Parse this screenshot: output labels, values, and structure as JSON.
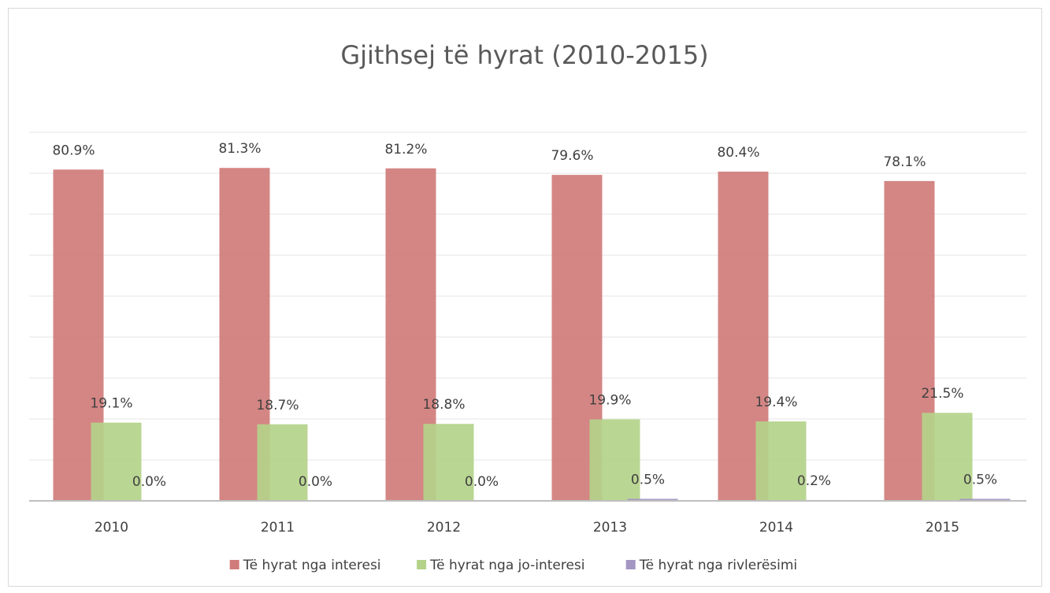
{
  "chart_data": {
    "type": "bar",
    "title": "Gjithsej të hyrat (2010-2015)",
    "categories": [
      "2010",
      "2011",
      "2012",
      "2013",
      "2014",
      "2015"
    ],
    "series": [
      {
        "name": "Të hyrat nga interesi",
        "color": "#d07c7a",
        "values": [
          80.9,
          81.3,
          81.2,
          79.6,
          80.4,
          78.1
        ],
        "value_labels": [
          "80.9%",
          "81.3%",
          "81.2%",
          "79.6%",
          "80.4%",
          "78.1%"
        ]
      },
      {
        "name": "Të hyrat nga jo-interesi",
        "color": "#b4d28a",
        "values": [
          19.1,
          18.7,
          18.8,
          19.9,
          19.4,
          21.5
        ],
        "value_labels": [
          "19.1%",
          "18.7%",
          "18.8%",
          "19.9%",
          "19.4%",
          "21.5%"
        ]
      },
      {
        "name": "Të hyrat nga rivlerësimi",
        "color": "#a396c2",
        "values": [
          0.0,
          0.0,
          0.0,
          0.5,
          0.2,
          0.5
        ],
        "value_labels": [
          "0.0%",
          "0.0%",
          "0.0%",
          "0.5%",
          "0.2%",
          "0.5%"
        ]
      }
    ],
    "ylim": [
      0,
      90
    ],
    "yticks": [
      0,
      10,
      20,
      30,
      40,
      50,
      60,
      70,
      80,
      90
    ],
    "grid": true,
    "legend": "bottom"
  }
}
